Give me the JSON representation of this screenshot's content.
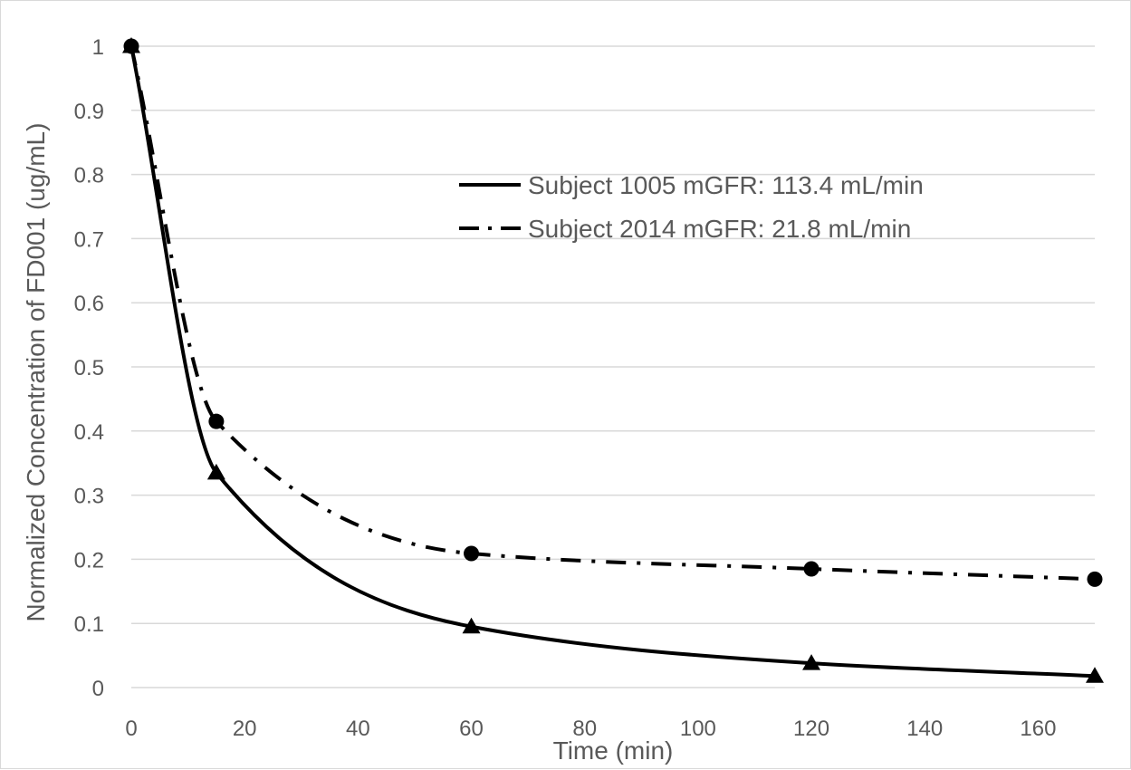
{
  "chart_data": {
    "type": "line",
    "xlabel": "Time (min)",
    "ylabel": "Normalized Concentration of FD001 (ug/mL)",
    "xlim": [
      0,
      170
    ],
    "ylim": [
      0,
      1
    ],
    "x_ticks": [
      "0",
      "20",
      "40",
      "60",
      "80",
      "100",
      "120",
      "140",
      "160"
    ],
    "y_ticks": [
      "0",
      "0.1",
      "0.2",
      "0.3",
      "0.4",
      "0.5",
      "0.6",
      "0.7",
      "0.8",
      "0.9",
      "1"
    ],
    "grid": "horizontal",
    "legend_position": "top-right",
    "series": [
      {
        "name": "Subject 1005 mGFR: 113.4 mL/min",
        "line_style": "solid",
        "marker": "triangle",
        "color": "#000000",
        "points": [
          {
            "x": 0,
            "y": 1.0
          },
          {
            "x": 15,
            "y": 0.335
          },
          {
            "x": 60,
            "y": 0.095
          },
          {
            "x": 120,
            "y": 0.038
          },
          {
            "x": 170,
            "y": 0.018
          }
        ]
      },
      {
        "name": "Subject 2014 mGFR: 21.8 mL/min",
        "line_style": "dash-dot",
        "marker": "circle",
        "color": "#000000",
        "points": [
          {
            "x": 0,
            "y": 1.0
          },
          {
            "x": 15,
            "y": 0.415
          },
          {
            "x": 60,
            "y": 0.209
          },
          {
            "x": 120,
            "y": 0.185
          },
          {
            "x": 170,
            "y": 0.169
          }
        ]
      }
    ]
  }
}
